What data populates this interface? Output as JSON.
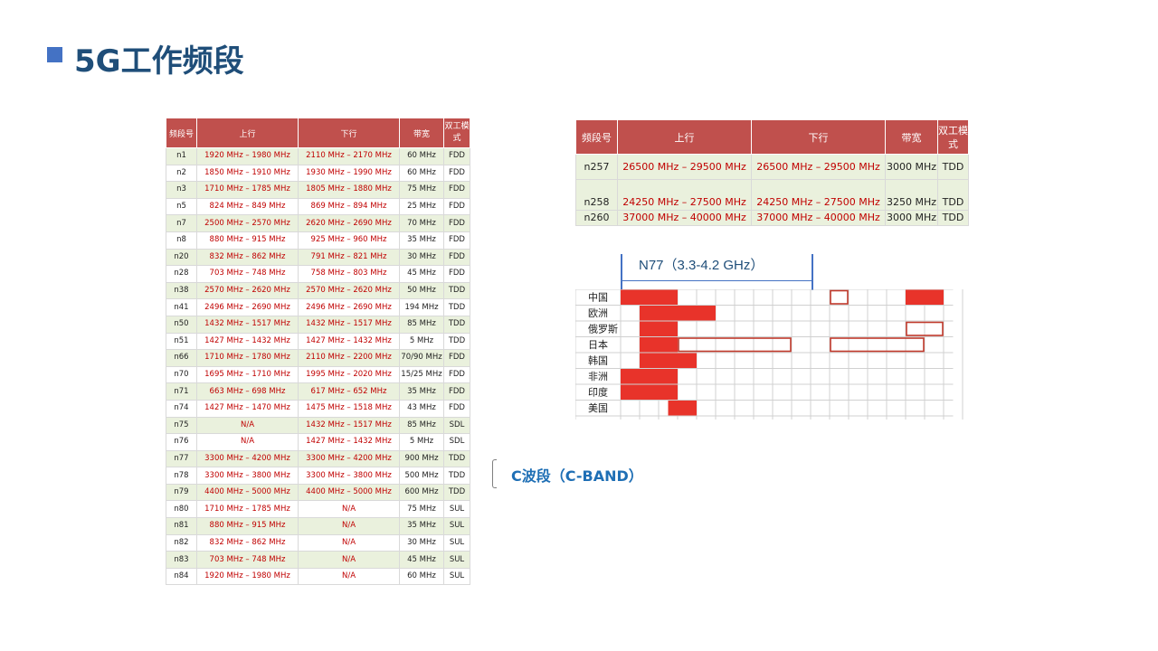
{
  "title": "5G工作频段",
  "left_table": {
    "headers": [
      "频段号",
      "上行",
      "下行",
      "带宽",
      "双工模式"
    ],
    "rows": [
      [
        "n1",
        "1920 MHz – 1980 MHz",
        "2110 MHz – 2170 MHz",
        "60 MHz",
        "FDD"
      ],
      [
        "n2",
        "1850 MHz – 1910 MHz",
        "1930 MHz – 1990 MHz",
        "60 MHz",
        "FDD"
      ],
      [
        "n3",
        "1710 MHz – 1785 MHz",
        "1805 MHz – 1880 MHz",
        "75 MHz",
        "FDD"
      ],
      [
        "n5",
        "824 MHz – 849 MHz",
        "869 MHz – 894 MHz",
        "25 MHz",
        "FDD"
      ],
      [
        "n7",
        "2500 MHz – 2570 MHz",
        "2620 MHz – 2690 MHz",
        "70 MHz",
        "FDD"
      ],
      [
        "n8",
        "880 MHz – 915 MHz",
        "925 MHz – 960 MHz",
        "35 MHz",
        "FDD"
      ],
      [
        "n20",
        "832 MHz – 862 MHz",
        "791 MHz – 821 MHz",
        "30 MHz",
        "FDD"
      ],
      [
        "n28",
        "703 MHz – 748 MHz",
        "758 MHz – 803 MHz",
        "45 MHz",
        "FDD"
      ],
      [
        "n38",
        "2570 MHz – 2620 MHz",
        "2570 MHz – 2620 MHz",
        "50 MHz",
        "TDD"
      ],
      [
        "n41",
        "2496 MHz – 2690 MHz",
        "2496 MHz – 2690 MHz",
        "194 MHz",
        "TDD"
      ],
      [
        "n50",
        "1432 MHz – 1517 MHz",
        "1432 MHz – 1517 MHz",
        "85 MHz",
        "TDD"
      ],
      [
        "n51",
        "1427 MHz – 1432 MHz",
        "1427 MHz – 1432 MHz",
        "5 MHz",
        "TDD"
      ],
      [
        "n66",
        "1710 MHz – 1780 MHz",
        "2110 MHz – 2200 MHz",
        "70/90 MHz",
        "FDD"
      ],
      [
        "n70",
        "1695 MHz – 1710 MHz",
        "1995 MHz – 2020 MHz",
        "15/25 MHz",
        "FDD"
      ],
      [
        "n71",
        "663 MHz – 698 MHz",
        "617 MHz – 652 MHz",
        "35 MHz",
        "FDD"
      ],
      [
        "n74",
        "1427 MHz – 1470 MHz",
        "1475 MHz – 1518 MHz",
        "43 MHz",
        "FDD"
      ],
      [
        "n75",
        "N/A",
        "1432 MHz – 1517 MHz",
        "85 MHz",
        "SDL"
      ],
      [
        "n76",
        "N/A",
        "1427 MHz – 1432 MHz",
        "5 MHz",
        "SDL"
      ],
      [
        "n77",
        "3300 MHz – 4200 MHz",
        "3300 MHz – 4200 MHz",
        "900 MHz",
        "TDD"
      ],
      [
        "n78",
        "3300 MHz – 3800 MHz",
        "3300 MHz – 3800 MHz",
        "500 MHz",
        "TDD"
      ],
      [
        "n79",
        "4400 MHz – 5000 MHz",
        "4400 MHz – 5000 MHz",
        "600 MHz",
        "TDD"
      ],
      [
        "n80",
        "1710 MHz – 1785 MHz",
        "N/A",
        "75 MHz",
        "SUL"
      ],
      [
        "n81",
        "880 MHz – 915 MHz",
        "N/A",
        "35 MHz",
        "SUL"
      ],
      [
        "n82",
        "832 MHz – 862 MHz",
        "N/A",
        "30 MHz",
        "SUL"
      ],
      [
        "n83",
        "703 MHz – 748 MHz",
        "N/A",
        "45 MHz",
        "SUL"
      ],
      [
        "n84",
        "1920 MHz – 1980 MHz",
        "N/A",
        "60 MHz",
        "SUL"
      ]
    ]
  },
  "right_table": {
    "headers": [
      "频段号",
      "上行",
      "下行",
      "带宽",
      "双工模式"
    ],
    "rows": [
      [
        "n257",
        "26500 MHz – 29500 MHz",
        "26500 MHz – 29500 MHz",
        "3000 MHz",
        "TDD"
      ],
      [
        "n258",
        "24250 MHz – 27500 MHz",
        "24250 MHz – 27500 MHz",
        "3250 MHz",
        "TDD"
      ],
      [
        "n260",
        "37000 MHz – 40000 MHz",
        "37000 MHz – 40000 MHz",
        "3000 MHz",
        "TDD"
      ]
    ]
  },
  "n77_label": "N77（3.3-4.2 GHz）",
  "c_band_label": "C波段（C-BAND）",
  "spectrum": {
    "axis_label": "GHz",
    "ticks": [
      "3.3",
      "3.4",
      "3.5",
      "3.6",
      "3.7",
      "3.8",
      "3.9",
      "4",
      "4.1",
      "4.2",
      "4.3",
      "4.4",
      "4.5",
      "4.6",
      "4.7",
      "4.8",
      "4.9",
      "5"
    ],
    "countries": [
      {
        "name": "中国",
        "filled": [
          [
            3.3,
            3.6
          ],
          [
            4.8,
            5.0
          ]
        ],
        "outlined": [
          [
            4.4,
            4.5
          ]
        ]
      },
      {
        "name": "欧洲",
        "filled": [
          [
            3.4,
            3.8
          ]
        ],
        "outlined": []
      },
      {
        "name": "俄罗斯",
        "filled": [
          [
            3.4,
            3.6
          ]
        ],
        "outlined": [
          [
            4.8,
            5.0
          ]
        ]
      },
      {
        "name": "日本",
        "filled": [
          [
            3.4,
            3.6
          ]
        ],
        "outlined": [
          [
            3.6,
            4.2
          ],
          [
            4.4,
            4.9
          ]
        ]
      },
      {
        "name": "韩国",
        "filled": [
          [
            3.4,
            3.7
          ]
        ],
        "outlined": []
      },
      {
        "name": "非洲",
        "filled": [
          [
            3.3,
            3.6
          ]
        ],
        "outlined": []
      },
      {
        "name": "印度",
        "filled": [
          [
            3.3,
            3.6
          ]
        ],
        "outlined": []
      },
      {
        "name": "美国",
        "filled": [
          [
            3.55,
            3.7
          ]
        ],
        "outlined": []
      }
    ],
    "fill_color": "#e8332a",
    "outline_color": "#c0392b"
  }
}
